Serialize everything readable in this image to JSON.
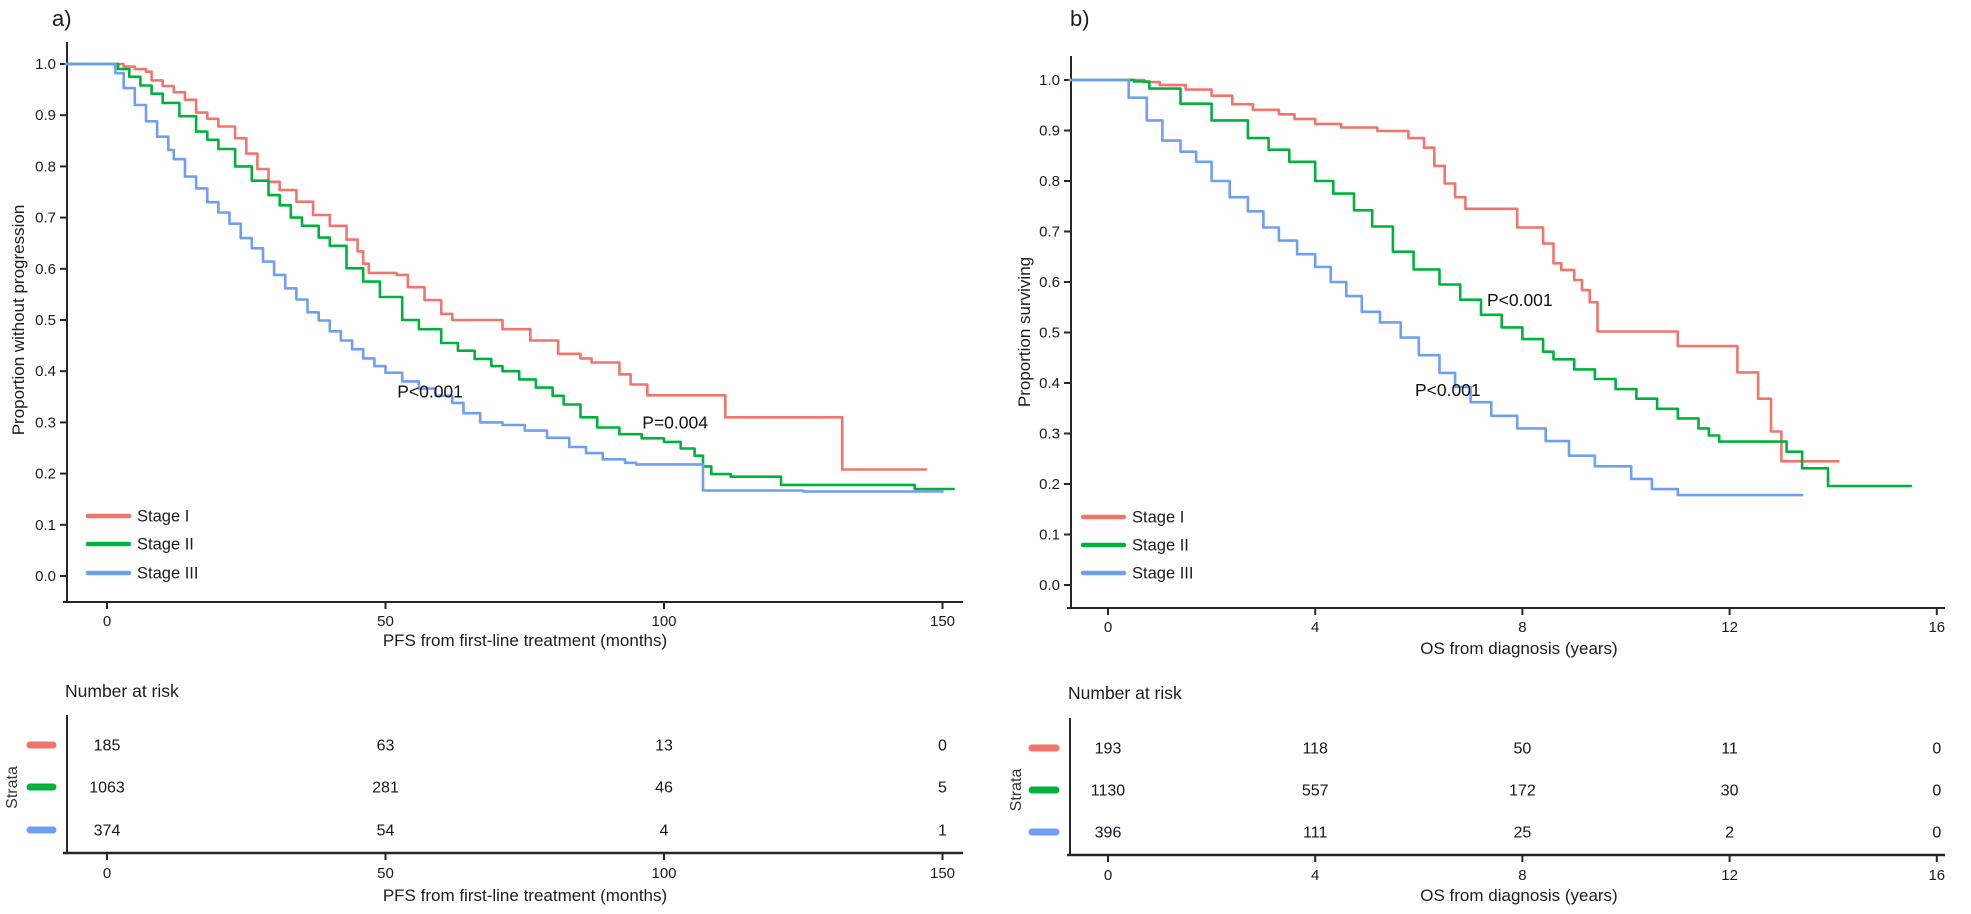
{
  "figure": {
    "strata_label": "Strata",
    "number_at_risk_label": "Number at risk",
    "legend_labels": [
      "Stage I",
      "Stage II",
      "Stage III"
    ],
    "colors": {
      "stage_i": "#F2756D",
      "stage_ii": "#00B23C",
      "stage_iii": "#6F9FF1",
      "axis": "#272727",
      "text": "#1c1c1c"
    }
  },
  "chart_data": [
    {
      "type": "line",
      "subtype": "kaplan-meier",
      "panel_label": "a)",
      "xlabel": "PFS from first-line treatment (months)",
      "ylabel": "Proportion without progression",
      "xlim": [
        -7.5,
        153.7
      ],
      "ylim": [
        0,
        1
      ],
      "xticks": [
        0,
        50,
        100,
        150
      ],
      "yticks": [
        1.0,
        0.9,
        0.8,
        0.7,
        0.6,
        0.5,
        0.4,
        0.3,
        0.2,
        0.1,
        0.0
      ],
      "grid": false,
      "legend_position": "bottom-left-inside",
      "annotations": [
        {
          "text": "P<0.001",
          "x": 58,
          "y": 0.36
        },
        {
          "text": "P=0.004",
          "x": 102,
          "y": 0.3
        }
      ],
      "series": [
        {
          "name": "Stage I",
          "color": "#F2756D",
          "end": 147,
          "steps": [
            [
              0,
              1.0
            ],
            [
              3,
              0.995
            ],
            [
              5,
              0.99
            ],
            [
              7,
              0.985
            ],
            [
              8,
              0.968
            ],
            [
              10,
              0.957
            ],
            [
              12,
              0.945
            ],
            [
              14,
              0.93
            ],
            [
              16,
              0.905
            ],
            [
              18,
              0.893
            ],
            [
              20,
              0.878
            ],
            [
              23,
              0.855
            ],
            [
              25,
              0.825
            ],
            [
              27,
              0.795
            ],
            [
              29,
              0.77
            ],
            [
              31,
              0.754
            ],
            [
              34,
              0.731
            ],
            [
              37,
              0.705
            ],
            [
              40,
              0.684
            ],
            [
              43,
              0.657
            ],
            [
              45,
              0.634
            ],
            [
              46,
              0.61
            ],
            [
              47,
              0.592
            ],
            [
              52,
              0.588
            ],
            [
              54,
              0.564
            ],
            [
              57,
              0.539
            ],
            [
              60,
              0.512
            ],
            [
              62,
              0.5
            ],
            [
              71,
              0.482
            ],
            [
              76,
              0.46
            ],
            [
              81,
              0.434
            ],
            [
              85,
              0.425
            ],
            [
              87,
              0.417
            ],
            [
              92,
              0.394
            ],
            [
              94,
              0.374
            ],
            [
              97,
              0.353
            ],
            [
              111,
              0.31
            ],
            [
              132,
              0.208
            ]
          ]
        },
        {
          "name": "Stage II",
          "color": "#00B23C",
          "end": 152,
          "steps": [
            [
              0,
              1.0
            ],
            [
              2,
              0.99
            ],
            [
              4,
              0.975
            ],
            [
              6,
              0.958
            ],
            [
              8,
              0.942
            ],
            [
              10,
              0.924
            ],
            [
              13,
              0.898
            ],
            [
              16,
              0.868
            ],
            [
              18,
              0.852
            ],
            [
              20,
              0.834
            ],
            [
              23,
              0.8
            ],
            [
              26,
              0.772
            ],
            [
              29,
              0.744
            ],
            [
              31,
              0.724
            ],
            [
              33,
              0.7
            ],
            [
              35,
              0.684
            ],
            [
              38,
              0.661
            ],
            [
              40,
              0.645
            ],
            [
              43,
              0.601
            ],
            [
              46,
              0.575
            ],
            [
              49,
              0.545
            ],
            [
              53,
              0.5
            ],
            [
              56,
              0.482
            ],
            [
              60,
              0.455
            ],
            [
              63,
              0.44
            ],
            [
              66,
              0.424
            ],
            [
              69,
              0.41
            ],
            [
              71,
              0.4
            ],
            [
              74,
              0.384
            ],
            [
              77,
              0.368
            ],
            [
              80,
              0.352
            ],
            [
              82,
              0.335
            ],
            [
              85,
              0.31
            ],
            [
              88,
              0.29
            ],
            [
              92,
              0.277
            ],
            [
              96,
              0.269
            ],
            [
              100,
              0.262
            ],
            [
              103,
              0.249
            ],
            [
              105.5,
              0.235
            ],
            [
              107,
              0.214
            ],
            [
              108.5,
              0.199
            ],
            [
              112,
              0.194
            ],
            [
              121,
              0.178
            ],
            [
              145,
              0.17
            ]
          ]
        },
        {
          "name": "Stage III",
          "color": "#6F9FF1",
          "end": 150,
          "steps": [
            [
              0,
              1.0
            ],
            [
              1.5,
              0.982
            ],
            [
              3,
              0.953
            ],
            [
              5,
              0.92
            ],
            [
              7,
              0.888
            ],
            [
              9,
              0.858
            ],
            [
              11,
              0.832
            ],
            [
              12,
              0.814
            ],
            [
              14,
              0.78
            ],
            [
              16,
              0.757
            ],
            [
              18,
              0.73
            ],
            [
              20,
              0.71
            ],
            [
              22,
              0.688
            ],
            [
              24,
              0.66
            ],
            [
              26,
              0.64
            ],
            [
              28,
              0.614
            ],
            [
              30,
              0.588
            ],
            [
              32,
              0.562
            ],
            [
              34,
              0.54
            ],
            [
              36,
              0.515
            ],
            [
              38,
              0.499
            ],
            [
              40,
              0.478
            ],
            [
              42,
              0.46
            ],
            [
              44,
              0.443
            ],
            [
              46,
              0.425
            ],
            [
              48,
              0.41
            ],
            [
              50,
              0.397
            ],
            [
              53,
              0.38
            ],
            [
              56,
              0.366
            ],
            [
              59,
              0.352
            ],
            [
              62,
              0.338
            ],
            [
              64,
              0.318
            ],
            [
              67,
              0.3
            ],
            [
              71,
              0.295
            ],
            [
              75,
              0.284
            ],
            [
              79,
              0.27
            ],
            [
              83,
              0.252
            ],
            [
              86,
              0.24
            ],
            [
              89,
              0.228
            ],
            [
              93,
              0.221
            ],
            [
              95,
              0.218
            ],
            [
              107,
              0.167
            ],
            [
              125,
              0.165
            ]
          ]
        }
      ],
      "risk_table": {
        "title": "Number at risk",
        "axis_label": "PFS from first-line treatment (months)",
        "times": [
          0,
          50,
          100,
          150
        ],
        "rows": [
          {
            "name": "Stage I",
            "counts": [
              "185",
              "63",
              "13",
              "0"
            ]
          },
          {
            "name": "Stage II",
            "counts": [
              "1063",
              "281",
              "46",
              "5"
            ]
          },
          {
            "name": "Stage III",
            "counts": [
              "374",
              "54",
              "4",
              "1"
            ]
          }
        ]
      }
    },
    {
      "type": "line",
      "subtype": "kaplan-meier",
      "panel_label": "b)",
      "xlabel": "OS from diagnosis (years)",
      "ylabel": "Proportion surviving",
      "xlim": [
        -0.72,
        16.16
      ],
      "ylim": [
        0,
        1
      ],
      "xticks": [
        0,
        4,
        8,
        12,
        16
      ],
      "yticks": [
        1.0,
        0.9,
        0.8,
        0.7,
        0.6,
        0.5,
        0.4,
        0.3,
        0.2,
        0.1,
        0.0
      ],
      "grid": false,
      "legend_position": "bottom-left-inside",
      "annotations": [
        {
          "text": "P<0.001",
          "x": 7.95,
          "y": 0.564
        },
        {
          "text": "P<0.001",
          "x": 6.56,
          "y": 0.386
        }
      ],
      "series": [
        {
          "name": "Stage I",
          "color": "#F2756D",
          "end": 14.1,
          "steps": [
            [
              0,
              1.0
            ],
            [
              0.7,
              0.996
            ],
            [
              1,
              0.99
            ],
            [
              1.5,
              0.981
            ],
            [
              2,
              0.969
            ],
            [
              2.4,
              0.952
            ],
            [
              2.8,
              0.941
            ],
            [
              3.3,
              0.932
            ],
            [
              3.6,
              0.923
            ],
            [
              4,
              0.913
            ],
            [
              4.5,
              0.906
            ],
            [
              5.2,
              0.899
            ],
            [
              5.8,
              0.885
            ],
            [
              6.1,
              0.866
            ],
            [
              6.3,
              0.83
            ],
            [
              6.5,
              0.795
            ],
            [
              6.7,
              0.768
            ],
            [
              6.9,
              0.745
            ],
            [
              7.9,
              0.708
            ],
            [
              8.4,
              0.676
            ],
            [
              8.6,
              0.637
            ],
            [
              8.75,
              0.624
            ],
            [
              9.0,
              0.604
            ],
            [
              9.15,
              0.584
            ],
            [
              9.3,
              0.56
            ],
            [
              9.45,
              0.502
            ],
            [
              11.0,
              0.473
            ],
            [
              12.15,
              0.421
            ],
            [
              12.55,
              0.369
            ],
            [
              12.8,
              0.304
            ],
            [
              13.0,
              0.245
            ]
          ]
        },
        {
          "name": "Stage II",
          "color": "#00B23C",
          "end": 15.5,
          "steps": [
            [
              0,
              1.0
            ],
            [
              0.5,
              0.997
            ],
            [
              0.8,
              0.983
            ],
            [
              1.4,
              0.953
            ],
            [
              2.0,
              0.92
            ],
            [
              2.7,
              0.885
            ],
            [
              3.1,
              0.862
            ],
            [
              3.5,
              0.838
            ],
            [
              4.0,
              0.8
            ],
            [
              4.35,
              0.775
            ],
            [
              4.75,
              0.742
            ],
            [
              5.1,
              0.71
            ],
            [
              5.5,
              0.66
            ],
            [
              5.9,
              0.625
            ],
            [
              6.4,
              0.595
            ],
            [
              6.8,
              0.565
            ],
            [
              7.2,
              0.535
            ],
            [
              7.6,
              0.51
            ],
            [
              8.0,
              0.487
            ],
            [
              8.4,
              0.462
            ],
            [
              8.6,
              0.447
            ],
            [
              9.0,
              0.427
            ],
            [
              9.4,
              0.408
            ],
            [
              9.8,
              0.388
            ],
            [
              10.2,
              0.369
            ],
            [
              10.6,
              0.349
            ],
            [
              11.0,
              0.33
            ],
            [
              11.4,
              0.31
            ],
            [
              11.6,
              0.296
            ],
            [
              11.8,
              0.284
            ],
            [
              13.1,
              0.264
            ],
            [
              13.4,
              0.231
            ],
            [
              13.9,
              0.196
            ]
          ]
        },
        {
          "name": "Stage III",
          "color": "#6F9FF1",
          "end": 13.4,
          "steps": [
            [
              0,
              1.0
            ],
            [
              0.4,
              0.965
            ],
            [
              0.75,
              0.92
            ],
            [
              1.05,
              0.88
            ],
            [
              1.4,
              0.858
            ],
            [
              1.7,
              0.838
            ],
            [
              2.0,
              0.8
            ],
            [
              2.35,
              0.768
            ],
            [
              2.7,
              0.74
            ],
            [
              3.0,
              0.708
            ],
            [
              3.3,
              0.682
            ],
            [
              3.65,
              0.655
            ],
            [
              4.0,
              0.63
            ],
            [
              4.3,
              0.6
            ],
            [
              4.6,
              0.572
            ],
            [
              4.9,
              0.541
            ],
            [
              5.25,
              0.52
            ],
            [
              5.65,
              0.49
            ],
            [
              6.0,
              0.455
            ],
            [
              6.4,
              0.42
            ],
            [
              6.7,
              0.392
            ],
            [
              7.0,
              0.362
            ],
            [
              7.4,
              0.335
            ],
            [
              7.9,
              0.31
            ],
            [
              8.45,
              0.285
            ],
            [
              8.9,
              0.256
            ],
            [
              9.4,
              0.235
            ],
            [
              10.1,
              0.21
            ],
            [
              10.5,
              0.19
            ],
            [
              11.0,
              0.178
            ]
          ]
        }
      ],
      "risk_table": {
        "title": "Number at risk",
        "axis_label": "OS from diagnosis (years)",
        "times": [
          0,
          4,
          8,
          12,
          16
        ],
        "rows": [
          {
            "name": "Stage I",
            "counts": [
              "193",
              "118",
              "50",
              "11",
              "0"
            ]
          },
          {
            "name": "Stage II",
            "counts": [
              "1130",
              "557",
              "172",
              "30",
              "0"
            ]
          },
          {
            "name": "Stage III",
            "counts": [
              "396",
              "111",
              "25",
              "2",
              "0"
            ]
          }
        ]
      }
    }
  ]
}
